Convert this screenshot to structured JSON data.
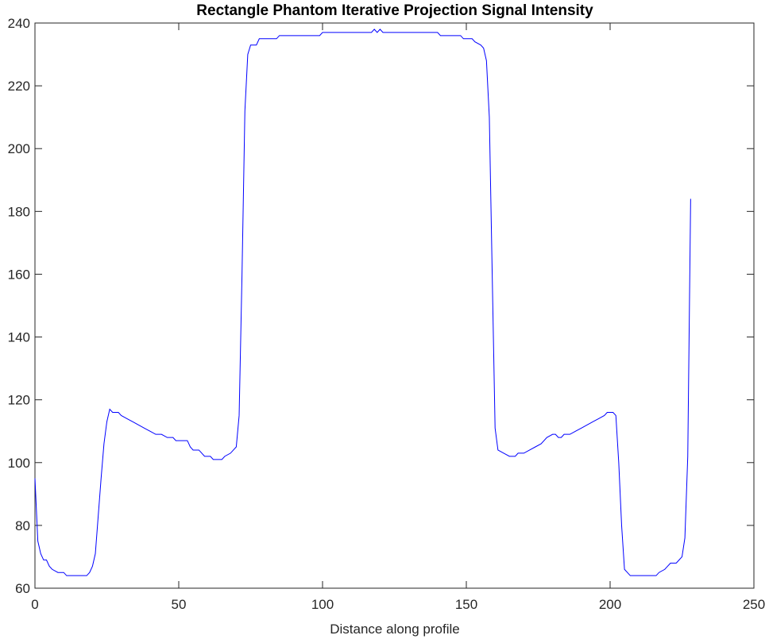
{
  "chart_data": {
    "type": "line",
    "title": "Rectangle Phantom Iterative Projection Signal Intensity",
    "xlabel": "Distance along profile",
    "xlim": [
      0,
      250
    ],
    "xticks": [
      0,
      50,
      100,
      150,
      200,
      250
    ],
    "ylim": [
      60,
      240
    ],
    "yticks": [
      60,
      80,
      100,
      120,
      140,
      160,
      180,
      200,
      220,
      240
    ],
    "box": true,
    "series": [
      {
        "color": "#0000ff",
        "x": [
          0,
          1,
          2,
          3,
          4,
          5,
          6,
          8,
          10,
          11,
          18,
          19,
          20,
          21,
          22,
          23,
          24,
          25,
          26,
          27,
          29,
          30,
          32,
          34,
          36,
          38,
          40,
          42,
          44,
          46,
          48,
          49,
          53,
          54,
          55,
          57,
          59,
          61,
          62,
          65,
          66,
          68,
          69,
          70,
          71,
          72,
          73,
          74,
          75,
          77,
          78,
          84,
          85,
          99,
          100,
          117,
          118,
          119,
          120,
          121,
          140,
          141,
          148,
          149,
          152,
          153,
          155,
          156,
          157,
          158,
          159,
          160,
          161,
          163,
          165,
          167,
          168,
          170,
          172,
          174,
          176,
          178,
          180,
          181,
          182,
          183,
          184,
          186,
          188,
          190,
          192,
          194,
          196,
          198,
          199,
          201,
          202,
          203,
          204,
          205,
          206,
          207,
          216,
          217,
          219,
          220,
          221,
          223,
          224,
          225,
          226,
          227,
          228
        ],
        "values": [
          95,
          75,
          71,
          69,
          69,
          67,
          66,
          65,
          65,
          64,
          64,
          65,
          67,
          71,
          83,
          95,
          106,
          113,
          117,
          116,
          116,
          115,
          114,
          113,
          112,
          111,
          110,
          109,
          109,
          108,
          108,
          107,
          107,
          105,
          104,
          104,
          102,
          102,
          101,
          101,
          102,
          103,
          104,
          105,
          115,
          160,
          212,
          230,
          233,
          233,
          235,
          235,
          236,
          236,
          237,
          237,
          238,
          237,
          238,
          237,
          237,
          236,
          236,
          235,
          235,
          234,
          233,
          232,
          228,
          210,
          160,
          111,
          104,
          103,
          102,
          102,
          103,
          103,
          104,
          105,
          106,
          108,
          109,
          109,
          108,
          108,
          109,
          109,
          110,
          111,
          112,
          113,
          114,
          115,
          116,
          116,
          115,
          100,
          80,
          66,
          65,
          64,
          64,
          65,
          66,
          67,
          68,
          68,
          69,
          70,
          76,
          102,
          184
        ]
      }
    ]
  }
}
